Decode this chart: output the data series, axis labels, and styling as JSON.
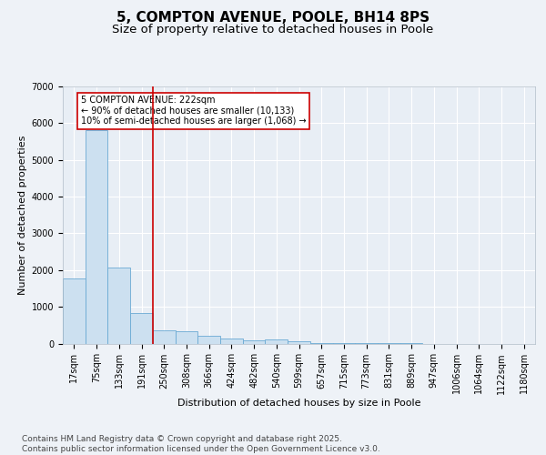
{
  "title": "5, COMPTON AVENUE, POOLE, BH14 8PS",
  "subtitle": "Size of property relative to detached houses in Poole",
  "xlabel": "Distribution of detached houses by size in Poole",
  "ylabel": "Number of detached properties",
  "categories": [
    "17sqm",
    "75sqm",
    "133sqm",
    "191sqm",
    "250sqm",
    "308sqm",
    "366sqm",
    "424sqm",
    "482sqm",
    "540sqm",
    "599sqm",
    "657sqm",
    "715sqm",
    "773sqm",
    "831sqm",
    "889sqm",
    "947sqm",
    "1006sqm",
    "1064sqm",
    "1122sqm",
    "1180sqm"
  ],
  "values": [
    1780,
    5820,
    2060,
    820,
    360,
    340,
    200,
    145,
    90,
    100,
    50,
    10,
    5,
    2,
    1,
    1,
    0,
    0,
    0,
    0,
    0
  ],
  "bar_color": "#cce0f0",
  "bar_edge_color": "#6aaad4",
  "vline_x_index": 3.5,
  "vline_color": "#cc0000",
  "annotation_text": "5 COMPTON AVENUE: 222sqm\n← 90% of detached houses are smaller (10,133)\n10% of semi-detached houses are larger (1,068) →",
  "annotation_box_color": "#cc0000",
  "annotation_box_facecolor": "white",
  "ylim": [
    0,
    7000
  ],
  "yticks": [
    0,
    1000,
    2000,
    3000,
    4000,
    5000,
    6000,
    7000
  ],
  "background_color": "#eef2f7",
  "plot_bg_color": "#e8eef5",
  "grid_color": "#ffffff",
  "footer": "Contains HM Land Registry data © Crown copyright and database right 2025.\nContains public sector information licensed under the Open Government Licence v3.0.",
  "title_fontsize": 11,
  "subtitle_fontsize": 9.5,
  "label_fontsize": 8,
  "tick_fontsize": 7,
  "annotation_fontsize": 7,
  "footer_fontsize": 6.5
}
